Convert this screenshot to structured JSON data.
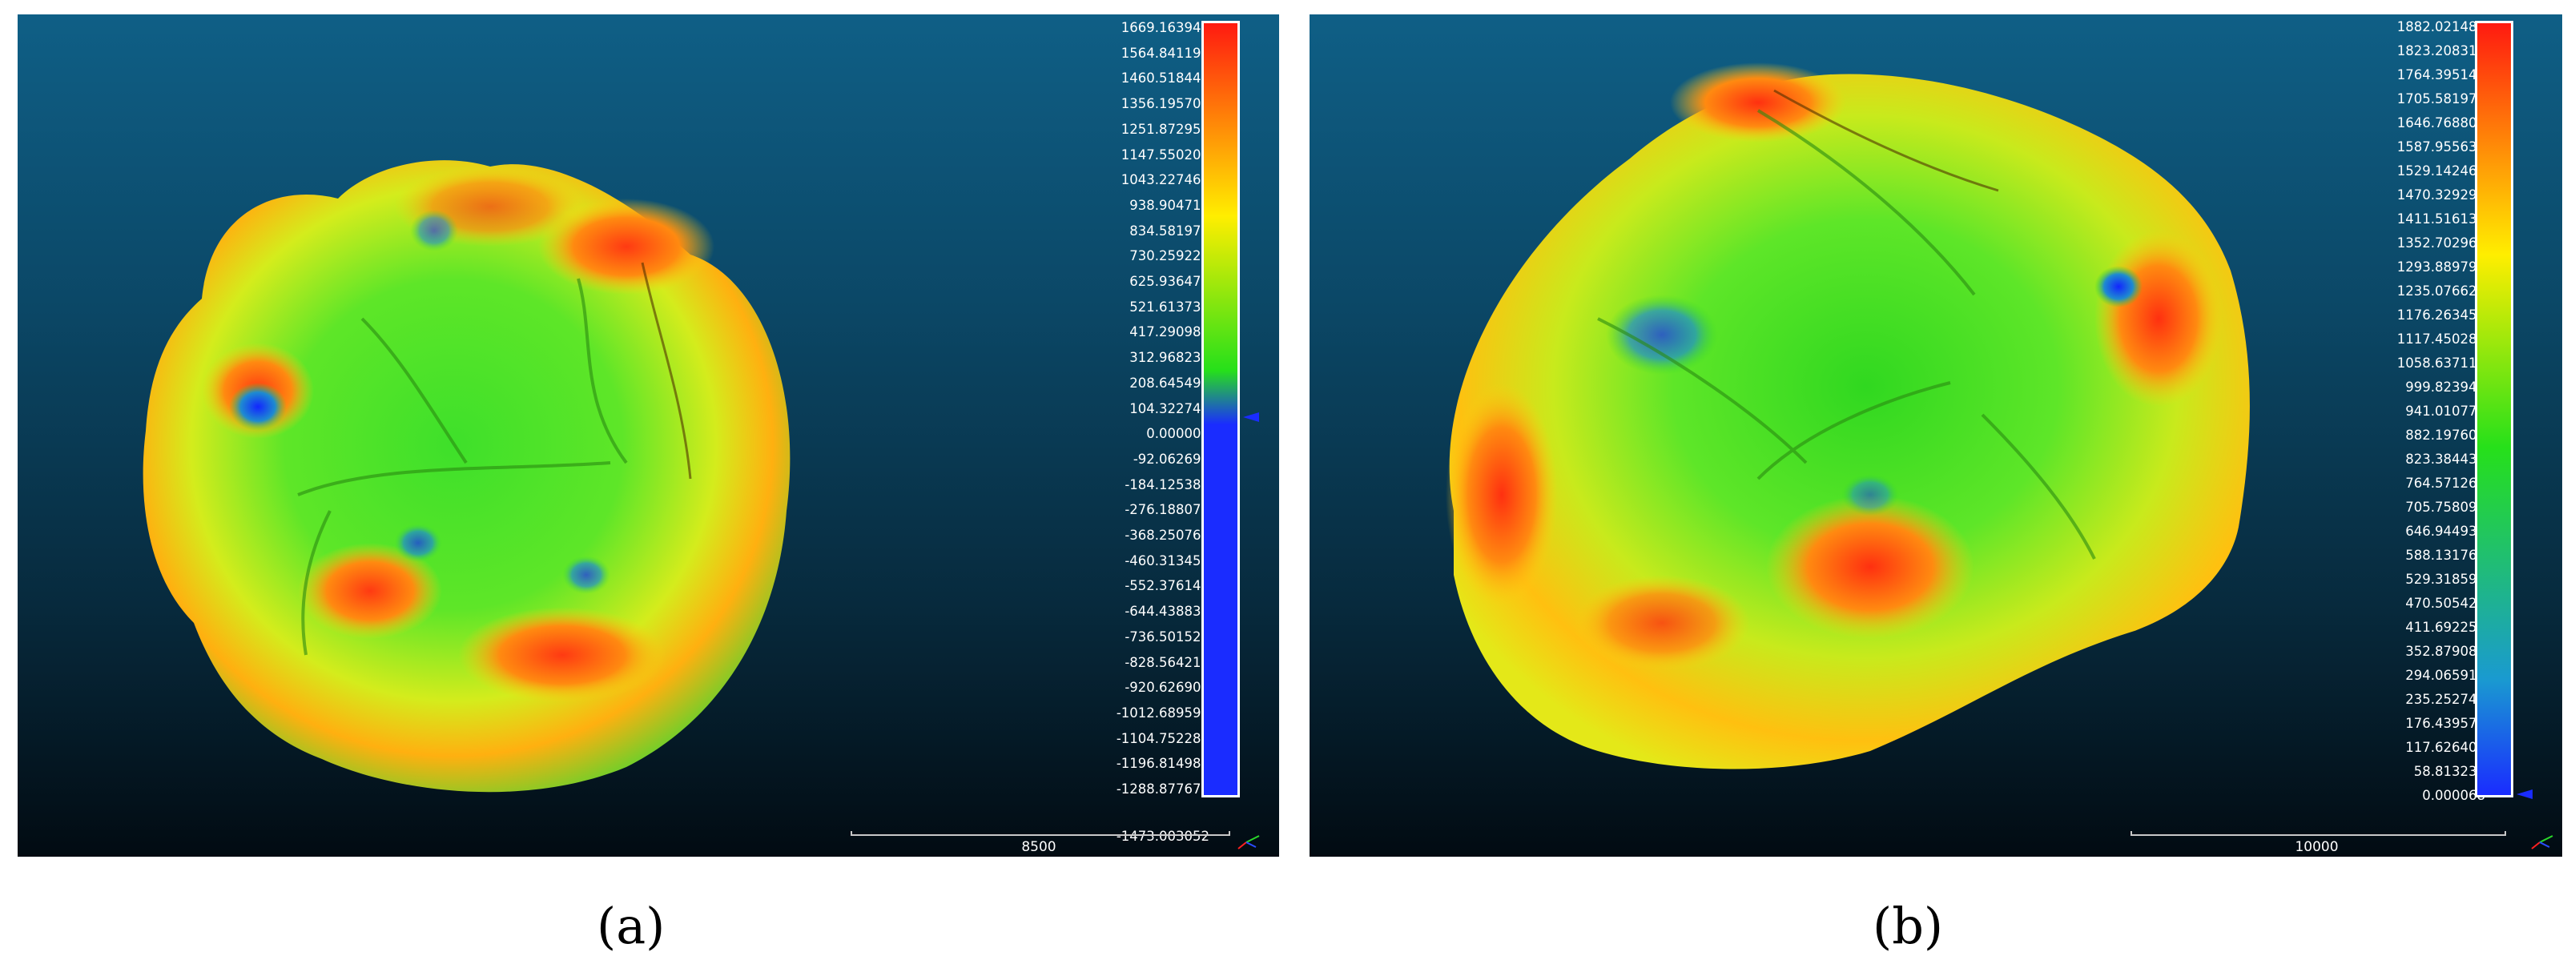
{
  "panel_a": {
    "caption": "(a)",
    "scale_values": [
      "1669.163940",
      "1564.841194",
      "1460.518448",
      "1356.195702",
      "1251.872955",
      "1147.550209",
      "1043.227463",
      "938.904716",
      "834.581970",
      "730.259224",
      "625.936478",
      "521.613731",
      "417.290985",
      "312.968239",
      "208.645493",
      "104.322746",
      "0.000000",
      "-92.062691",
      "-184.125381",
      "-276.188072",
      "-368.250763",
      "-460.313454",
      "-552.376144",
      "-644.438835",
      "-736.501526",
      "-828.564217",
      "-920.626907",
      "-1012.689598",
      "-1104.752289",
      "-1196.814980",
      "-1288.877670",
      "-1473.003052"
    ],
    "scale_bar_label": "8500"
  },
  "panel_b": {
    "caption": "(b)",
    "scale_values": [
      "1882.021484",
      "1823.208315",
      "1764.395146",
      "1705.581977",
      "1646.768807",
      "1587.955638",
      "1529.142469",
      "1470.329299",
      "1411.516130",
      "1352.702961",
      "1293.889792",
      "1235.076622",
      "1176.263453",
      "1117.450284",
      "1058.637115",
      "999.823945",
      "941.010776",
      "882.197607",
      "823.384438",
      "764.571268",
      "705.758099",
      "646.944930",
      "588.131760",
      "529.318591",
      "470.505422",
      "411.692253",
      "352.879083",
      "294.065914",
      "235.252745",
      "176.439576",
      "117.626406",
      "58.813237",
      "0.000068"
    ],
    "scale_bar_label": "10000"
  },
  "colors": {
    "max": "#ff2a12",
    "mid_high": "#ffea00",
    "mid": "#24e61c",
    "low": "#1a2cff",
    "background_top": "#0f5f86",
    "background_bottom": "#020b12"
  }
}
